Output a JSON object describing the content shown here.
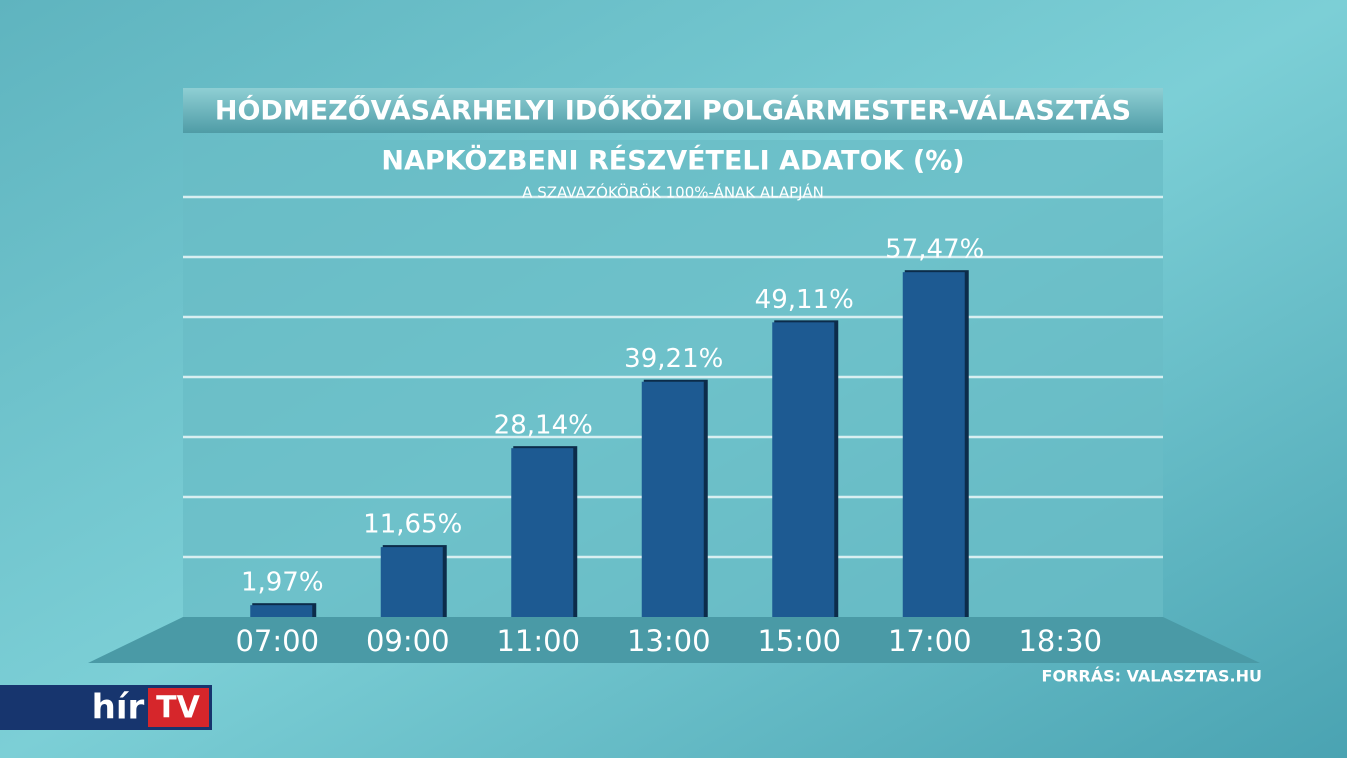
{
  "chart_data": {
    "type": "bar",
    "title": "HÓDMEZŐVÁSÁRHELYI IDŐKÖZI POLGÁRMESTER-VÁLASZTÁS",
    "subtitle": "NAPKÖZBENI RÉSZVÉTELI ADATOK (%)",
    "note": "A SZAVAZÓKÖRÖK 100%-ÁNAK ALAPJÁN",
    "source": "FORRÁS: VALASZTAS.HU",
    "categories": [
      "07:00",
      "09:00",
      "11:00",
      "13:00",
      "15:00",
      "17:00",
      "18:30"
    ],
    "values": [
      1.97,
      11.65,
      28.14,
      39.21,
      49.11,
      57.47,
      null
    ],
    "value_labels": [
      "1,97%",
      "11,65%",
      "28,14%",
      "39,21%",
      "49,11%",
      "57,47%",
      null
    ],
    "color": "#1d5a92",
    "ylim": [
      0,
      80
    ],
    "yticks": [
      10,
      20,
      30,
      40,
      50,
      60,
      70
    ],
    "grid": true
  },
  "logo": {
    "left": "hír",
    "right": "TV"
  }
}
